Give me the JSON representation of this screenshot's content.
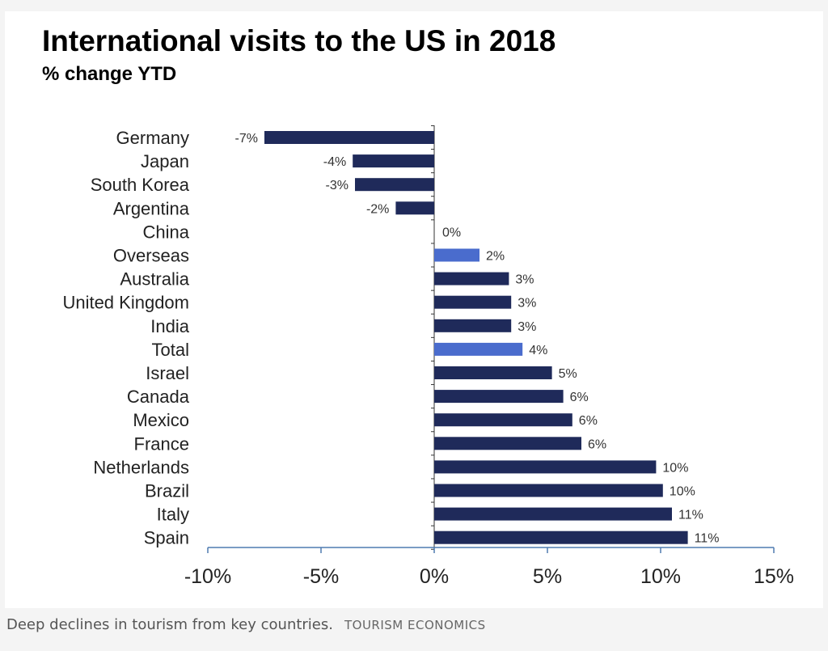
{
  "caption": {
    "text": "Deep declines in tourism from key countries.",
    "credit": "TOURISM ECONOMICS"
  },
  "colors": {
    "country_bar": "#1f2a5a",
    "aggregate_bar": "#4a6ccd",
    "axis": "#4f7bb0"
  },
  "chart_data": {
    "type": "bar",
    "orientation": "horizontal",
    "title": "International visits to the US in 2018",
    "subtitle": "% change YTD",
    "categories": [
      "Germany",
      "Japan",
      "South Korea",
      "Argentina",
      "China",
      "Overseas",
      "Australia",
      "United Kingdom",
      "India",
      "Total",
      "Israel",
      "Canada",
      "Mexico",
      "France",
      "Netherlands",
      "Brazil",
      "Italy",
      "Spain"
    ],
    "values": [
      -7.5,
      -3.6,
      -3.5,
      -1.7,
      0,
      2,
      3.3,
      3.4,
      3.4,
      3.9,
      5.2,
      5.7,
      6.1,
      6.5,
      9.8,
      10.1,
      10.5,
      11.2
    ],
    "data_labels": [
      "-7%",
      "-4%",
      "-3%",
      "-2%",
      "0%",
      "2%",
      "3%",
      "3%",
      "3%",
      "4%",
      "5%",
      "6%",
      "6%",
      "6%",
      "10%",
      "10%",
      "11%",
      "11%"
    ],
    "highlighted": [
      "Overseas",
      "Total"
    ],
    "xlim": [
      -10,
      15
    ],
    "xticks": [
      -10,
      -5,
      0,
      5,
      10,
      15
    ],
    "xtick_labels": [
      "-10%",
      "-5%",
      "0%",
      "5%",
      "10%",
      "15%"
    ],
    "grid": false,
    "legend": "none"
  }
}
